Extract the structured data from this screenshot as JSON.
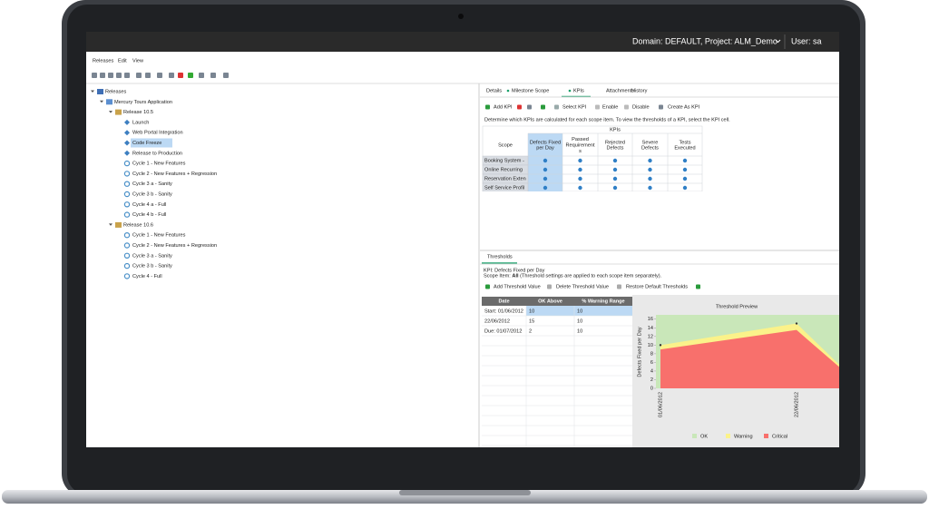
{
  "header": {
    "domain": "Domain: DEFAULT, Project: ALM_Demo",
    "user": "User: sa"
  },
  "menu": [
    "Releases",
    "Edit",
    "View"
  ],
  "tree": [
    "Releases",
    "Mercury Tours Application",
    "Release 10.5",
    "Launch",
    "Web Portal Integration",
    "Code Freeze",
    "Release to Production",
    "Cycle 1 - New Features",
    "Cycle 2 - New Features + Regression",
    "Cycle 3 a - Sanity",
    "Cycle 3 b - Sanity",
    "Cycle 4 a - Full",
    "Cycle 4 b - Full",
    "Release 10.6",
    "Cycle 1 - New Features",
    "Cycle 2 - New Features + Regression",
    "Cycle 3 a - Sanity",
    "Cycle 3 b - Sanity",
    "Cycle 4 - Full"
  ],
  "tabs": [
    "Details",
    "Milestone Scope",
    "KPIs",
    "Attachments",
    "History"
  ],
  "kpi_toolbar": [
    "Add KPI",
    "Select KPI",
    "Enable",
    "Disable",
    "Create As KPI"
  ],
  "kpi_description": "Determine which KPIs are calculated for each scope item. To view the thresholds of a KPI, select the KPI cell.",
  "kpi_table": {
    "group_header": "KPIs",
    "scope_header": "Scope",
    "columns": [
      [
        "Defects Fixed",
        "per Day"
      ],
      [
        "Passed",
        "Requirement",
        "s"
      ],
      [
        "Rejected",
        "Defects"
      ],
      [
        "Severe",
        "Defects"
      ],
      [
        "Tests",
        "Executed"
      ]
    ],
    "rows": [
      "Booking System -",
      "Online Recurring",
      "Reservation Exten",
      "Self Service Profil"
    ]
  },
  "thresholds": {
    "tab": "Thresholds",
    "kpi": "KPI: Defects Fixed per Day",
    "scope_prefix": "Scope Item:",
    "scope_value": "All",
    "scope_note": "(Threshold settings are applied to each scope item separately).",
    "toolbar": [
      "Add Threshold Value",
      "Delete Threshold Value",
      "Restore Default Thresholds"
    ],
    "columns": [
      "Date",
      "OK Above",
      "% Warning Range"
    ],
    "rows": [
      [
        "Start: 01/06/2012",
        "10",
        "10"
      ],
      [
        "22/06/2012",
        "15",
        "10"
      ],
      [
        "Due: 01/07/2012",
        "2",
        "10"
      ]
    ]
  },
  "chart_data": {
    "type": "area",
    "title": "Threshold Preview",
    "y_label": "Defects Fixed per Day",
    "x_labels": [
      "01/06/2012",
      "22/06/2012"
    ],
    "ylim": [
      0,
      17
    ],
    "yticks": [
      0,
      2,
      4,
      6,
      8,
      10,
      12,
      14,
      16
    ],
    "legend": [
      {
        "name": "OK",
        "color": "#c9e7b9"
      },
      {
        "name": "Warning",
        "color": "#fbf28a"
      },
      {
        "name": "Critical",
        "color": "#f8706c"
      }
    ]
  }
}
